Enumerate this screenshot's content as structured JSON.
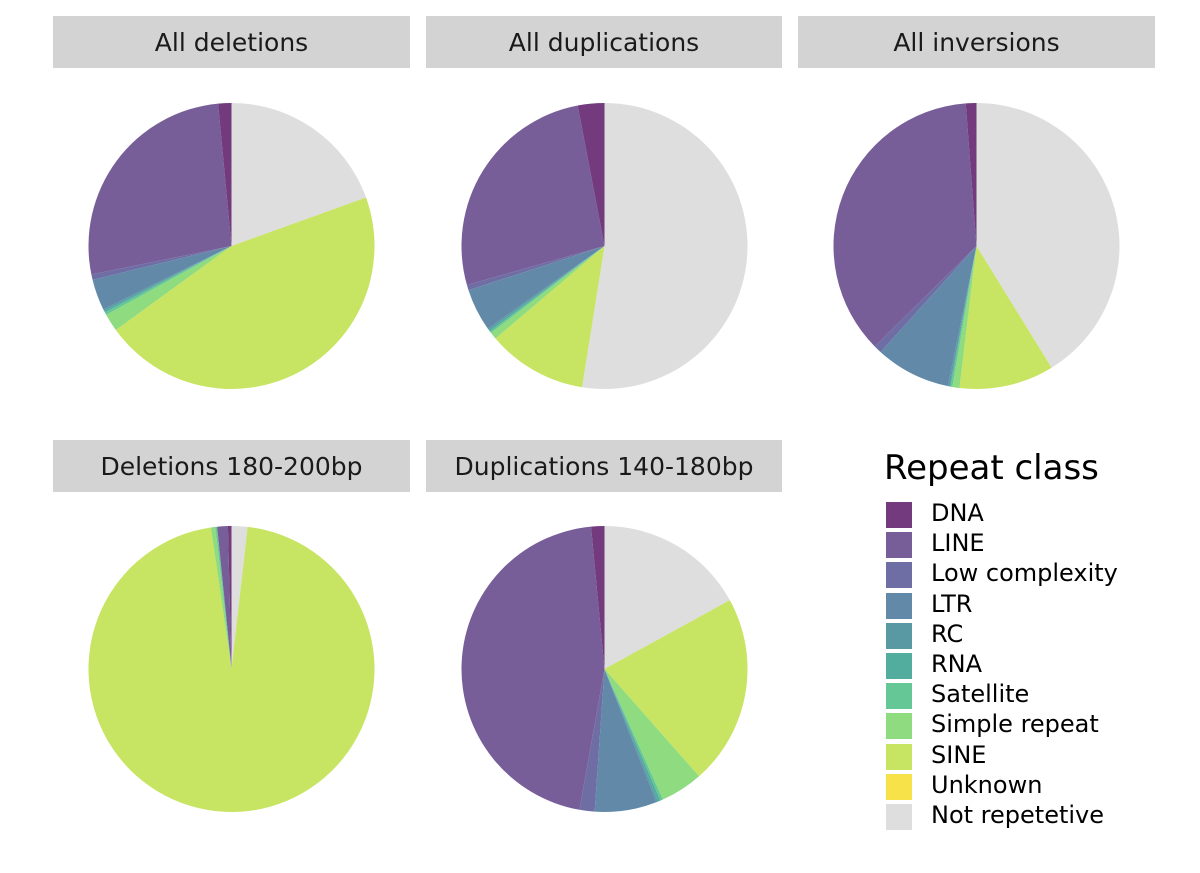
{
  "chart_data": {
    "type": "pie",
    "legend_title": "Repeat class",
    "legend_position": "bottom-right",
    "classes": [
      {
        "name": "DNA",
        "color": "#733a7e"
      },
      {
        "name": "LINE",
        "color": "#775e98"
      },
      {
        "name": "Low complexity",
        "color": "#6e6ea5"
      },
      {
        "name": "LTR",
        "color": "#628aa8"
      },
      {
        "name": "RC",
        "color": "#5899a4"
      },
      {
        "name": "RNA",
        "color": "#52ad9f"
      },
      {
        "name": "Satellite",
        "color": "#66c796"
      },
      {
        "name": "Simple repeat",
        "color": "#8fdb80"
      },
      {
        "name": "SINE",
        "color": "#c7e462"
      },
      {
        "name": "Unknown",
        "color": "#f7e24a"
      },
      {
        "name": "Not repetetive",
        "color": "#dedede"
      }
    ],
    "panels": [
      {
        "title": "All deletions",
        "values": {
          "Not repetetive": 19.5,
          "SINE": 45.5,
          "Simple repeat": 2.0,
          "Satellite": 0.3,
          "RNA": 0.2,
          "RC": 0.2,
          "LTR": 3.5,
          "Low complexity": 0.6,
          "LINE": 26.7,
          "DNA": 1.5
        }
      },
      {
        "title": "All duplications",
        "values": {
          "Not repetetive": 52.5,
          "SINE": 11.3,
          "Simple repeat": 0.8,
          "Satellite": 0.2,
          "RNA": 0.2,
          "RC": 0.2,
          "LTR": 4.8,
          "Low complexity": 0.6,
          "LINE": 26.4,
          "DNA": 3.0
        }
      },
      {
        "title": "All inversions",
        "values": {
          "Not repetetive": 41.2,
          "SINE": 10.7,
          "Simple repeat": 0.8,
          "Satellite": 0.2,
          "RNA": 0.1,
          "RC": 0.2,
          "LTR": 8.5,
          "Low complexity": 0.9,
          "LINE": 36.2,
          "DNA": 1.2
        }
      },
      {
        "title": "Deletions 180-200bp",
        "values": {
          "Not repetetive": 1.8,
          "SINE": 95.9,
          "Simple repeat": 0.5,
          "Satellite": 0.2,
          "LINE": 1.2,
          "DNA": 0.4
        }
      },
      {
        "title": "Duplications 140-180bp",
        "values": {
          "Not repetetive": 17.0,
          "SINE": 21.5,
          "Simple repeat": 4.8,
          "Satellite": 0.3,
          "RNA": 0.3,
          "RC": 0.2,
          "LTR": 7.0,
          "Low complexity": 1.7,
          "LINE": 45.7,
          "DNA": 1.5
        }
      }
    ]
  }
}
